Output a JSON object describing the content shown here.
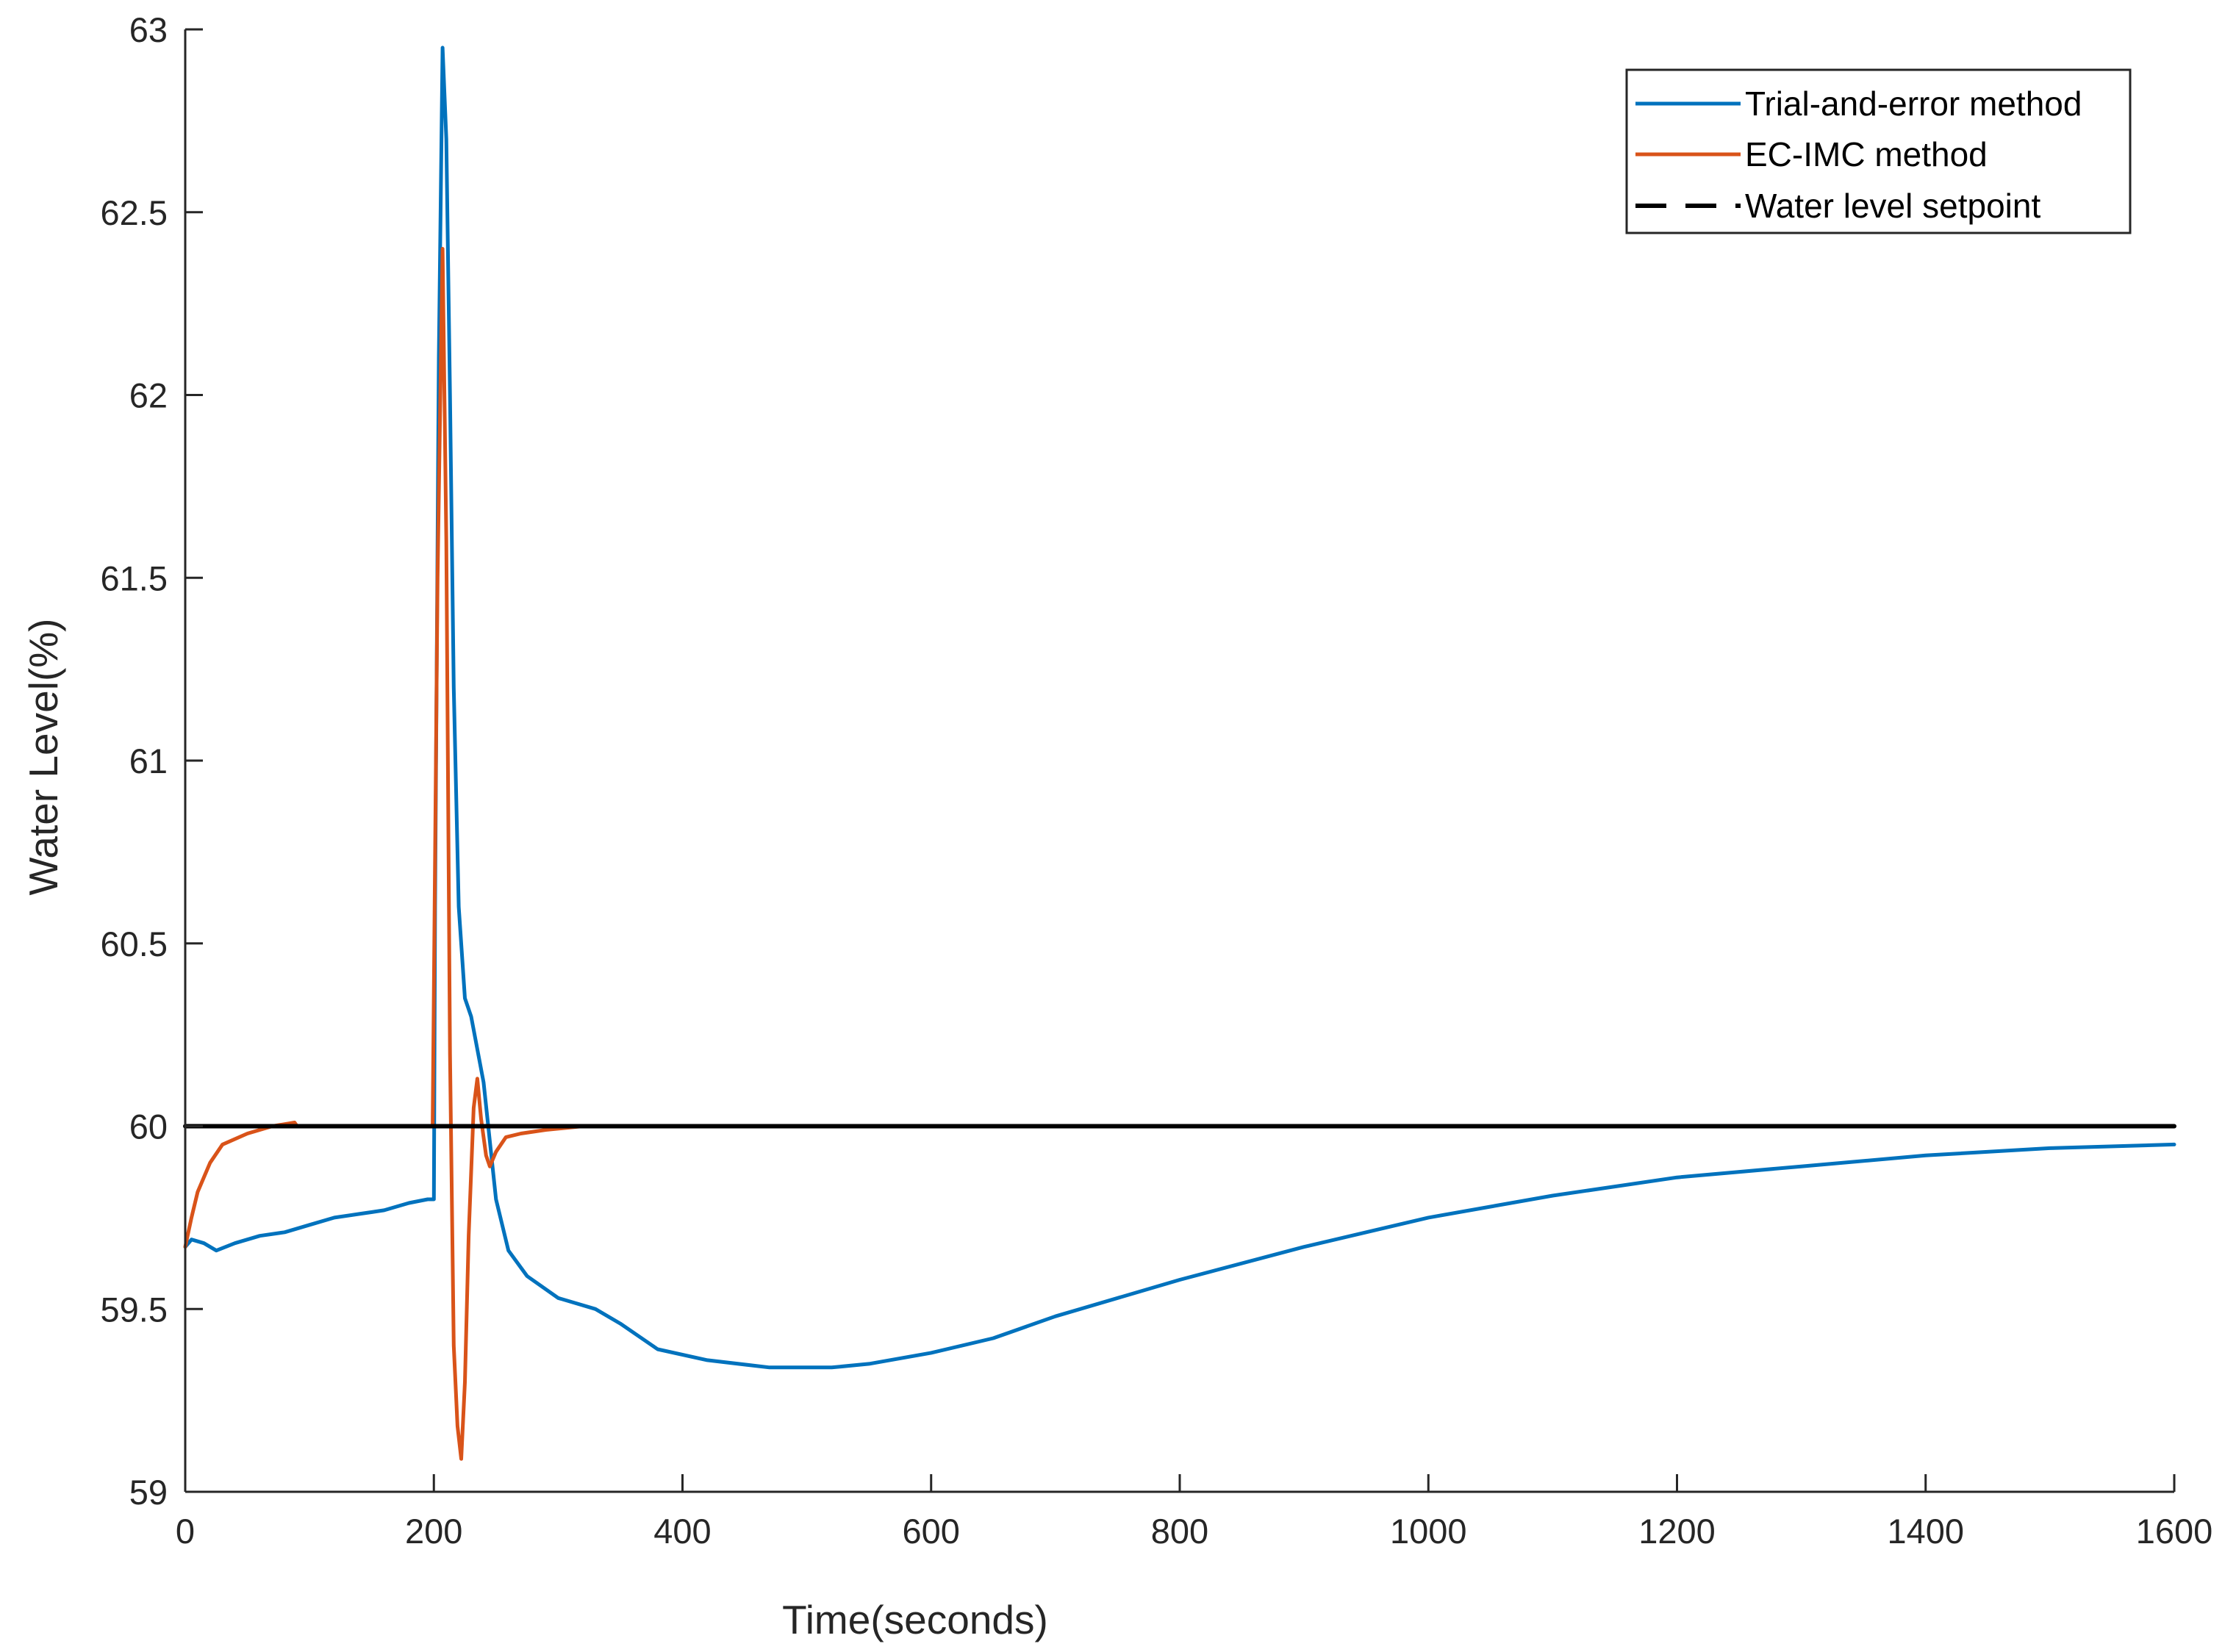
{
  "chart_data": {
    "type": "line",
    "xlabel": "Time(seconds)",
    "ylabel": "Water Level(%)",
    "xlim": [
      0,
      1600
    ],
    "ylim": [
      59,
      63
    ],
    "x_ticks": [
      "0",
      "200",
      "400",
      "600",
      "800",
      "1000",
      "1200",
      "1400",
      "1600"
    ],
    "y_ticks": [
      "59",
      "59.5",
      "60",
      "60.5",
      "61",
      "61.5",
      "62",
      "62.5",
      "63"
    ],
    "grid": false,
    "legend_position": "top-right",
    "series": [
      {
        "name": "Trial-and-error method",
        "color": "#0072BD",
        "style": "solid",
        "x": [
          0,
          5,
          15,
          25,
          40,
          60,
          80,
          100,
          120,
          140,
          160,
          180,
          195,
          200,
          201,
          204,
          207,
          210,
          213,
          216,
          220,
          225,
          230,
          240,
          250,
          260,
          275,
          300,
          330,
          350,
          380,
          420,
          470,
          520,
          550,
          600,
          650,
          700,
          800,
          900,
          1000,
          1100,
          1200,
          1300,
          1400,
          1500,
          1600
        ],
        "y": [
          59.67,
          59.69,
          59.68,
          59.66,
          59.68,
          59.7,
          59.71,
          59.73,
          59.75,
          59.76,
          59.77,
          59.79,
          59.8,
          59.8,
          60.6,
          62.1,
          62.95,
          62.7,
          62.0,
          61.2,
          60.6,
          60.35,
          60.3,
          60.12,
          59.8,
          59.66,
          59.59,
          59.53,
          59.5,
          59.46,
          59.39,
          59.36,
          59.34,
          59.34,
          59.35,
          59.38,
          59.42,
          59.48,
          59.58,
          59.67,
          59.75,
          59.81,
          59.86,
          59.89,
          59.92,
          59.94,
          59.95
        ]
      },
      {
        "name": "EC-IMC method",
        "color": "#D95319",
        "style": "solid",
        "x": [
          0,
          5,
          10,
          20,
          30,
          50,
          70,
          88,
          90,
          100,
          150,
          190,
          199,
          203,
          207,
          210,
          213,
          216,
          219,
          222,
          225,
          228,
          232,
          235,
          238,
          242,
          245,
          250,
          258,
          270,
          290,
          320,
          400,
          500,
          600,
          700,
          800,
          1000,
          1200,
          1400,
          1600
        ],
        "y": [
          59.67,
          59.75,
          59.82,
          59.9,
          59.95,
          59.98,
          60.0,
          60.01,
          60.0,
          60.0,
          60.0,
          60.0,
          60.0,
          61.5,
          62.4,
          61.6,
          60.2,
          59.4,
          59.18,
          59.09,
          59.3,
          59.7,
          60.05,
          60.13,
          60.02,
          59.92,
          59.89,
          59.93,
          59.97,
          59.98,
          59.99,
          60.0,
          60.0,
          60.0,
          60.0,
          60.0,
          60.0,
          60.0,
          60.0,
          60.0,
          60.0
        ]
      },
      {
        "name": "Water level setpoint",
        "color": "#000000",
        "style": "dashed",
        "x": [
          0,
          1600
        ],
        "y": [
          60,
          60
        ]
      }
    ]
  }
}
